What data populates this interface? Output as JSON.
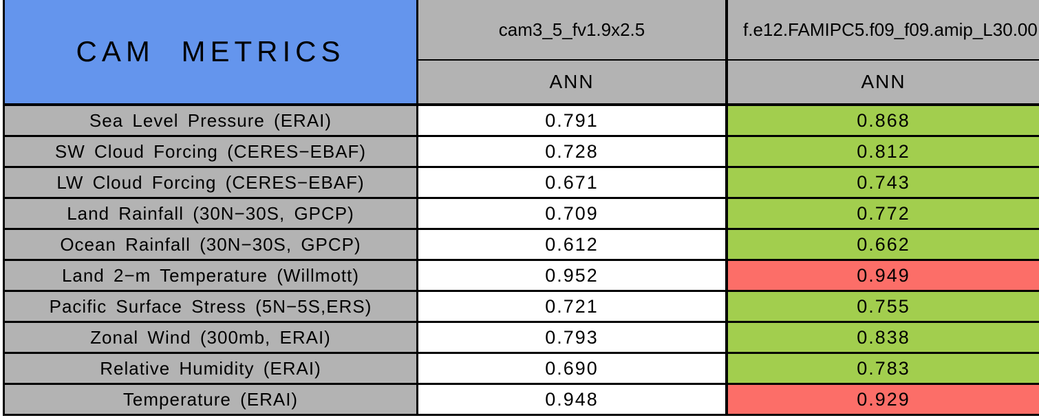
{
  "table": {
    "title": "CAM METRICS",
    "columns": [
      {
        "model": "cam3_5_fv1.9x2.5",
        "season": "ANN"
      },
      {
        "model": "f.e12.FAMIPC5.f09_f09.amip_L30.00",
        "season": "ANN"
      }
    ],
    "rows": [
      {
        "metric": "Sea Level Pressure (ERAI)",
        "col1": "0.791",
        "col2": "0.868",
        "col2_status": "better"
      },
      {
        "metric": "SW Cloud Forcing (CERES−EBAF)",
        "col1": "0.728",
        "col2": "0.812",
        "col2_status": "better"
      },
      {
        "metric": "LW Cloud Forcing (CERES−EBAF)",
        "col1": "0.671",
        "col2": "0.743",
        "col2_status": "better"
      },
      {
        "metric": "Land Rainfall (30N−30S, GPCP)",
        "col1": "0.709",
        "col2": "0.772",
        "col2_status": "better"
      },
      {
        "metric": "Ocean Rainfall (30N−30S, GPCP)",
        "col1": "0.612",
        "col2": "0.662",
        "col2_status": "better"
      },
      {
        "metric": "Land 2−m Temperature (Willmott)",
        "col1": "0.952",
        "col2": "0.949",
        "col2_status": "worse"
      },
      {
        "metric": "Pacific Surface Stress (5N−5S,ERS)",
        "col1": "0.721",
        "col2": "0.755",
        "col2_status": "better"
      },
      {
        "metric": "Zonal Wind (300mb, ERAI)",
        "col1": "0.793",
        "col2": "0.838",
        "col2_status": "better"
      },
      {
        "metric": "Relative Humidity (ERAI)",
        "col1": "0.690",
        "col2": "0.783",
        "col2_status": "better"
      },
      {
        "metric": "Temperature (ERAI)",
        "col1": "0.948",
        "col2": "0.929",
        "col2_status": "worse"
      }
    ],
    "colors": {
      "header_blue": "#6495ED",
      "cell_gray": "#B3B3B3",
      "better_green": "#A2CE4E",
      "worse_red": "#FC6E68",
      "neutral_white": "#FFFFFF"
    }
  }
}
